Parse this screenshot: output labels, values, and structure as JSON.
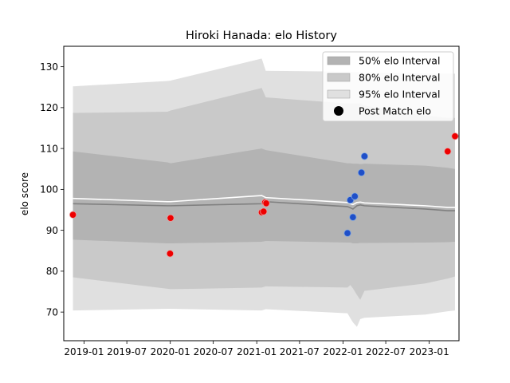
{
  "chart_data": {
    "type": "line",
    "title": "Hiroki Hanada: elo History",
    "xlabel": "",
    "ylabel": "elo score",
    "xlim": [
      "2018-10-07",
      "2023-05-07"
    ],
    "ylim": [
      63.0,
      135.0
    ],
    "yticks": [
      70,
      80,
      90,
      100,
      110,
      120,
      130
    ],
    "xticks": [
      "2019-01-01",
      "2019-07-01",
      "2020-01-01",
      "2020-07-01",
      "2021-01-01",
      "2021-07-01",
      "2022-01-01",
      "2022-07-01",
      "2023-01-01"
    ],
    "xtick_labels": [
      "2019-01",
      "2019-07",
      "2020-01",
      "2020-07",
      "2021-01",
      "2021-07",
      "2022-01",
      "2022-07",
      "2023-01"
    ],
    "grid": false,
    "legend_placement": "upper right",
    "legend": [
      {
        "label": "50% elo Interval",
        "kind": "patch",
        "color": "#b3b3b3"
      },
      {
        "label": "80% elo Interval",
        "kind": "patch",
        "color": "#c9c9c9"
      },
      {
        "label": "95% elo Interval",
        "kind": "patch",
        "color": "#e0e0e0"
      },
      {
        "label": "Post Match elo",
        "kind": "marker",
        "color": "#000000"
      }
    ],
    "x": [
      "2018-11-15",
      "2019-12-20",
      "2020-01-02",
      "2021-01-22",
      "2021-02-08",
      "2022-01-20",
      "2022-02-01",
      "2022-02-12",
      "2022-03-01",
      "2022-03-15",
      "2022-04-02",
      "2022-12-15",
      "2023-03-20",
      "2023-04-20"
    ],
    "series": [
      {
        "name": "mean",
        "color": "#808080",
        "values": [
          96.5,
          96.0,
          96.0,
          96.5,
          97.0,
          95.8,
          95.5,
          95.2,
          96.0,
          96.2,
          96.0,
          95.2,
          94.8,
          94.8
        ]
      },
      {
        "name": "upper",
        "color": "#ffffff",
        "values": [
          97.8,
          97.0,
          97.0,
          98.5,
          98.0,
          96.8,
          96.5,
          96.3,
          96.8,
          96.9,
          96.7,
          96.0,
          95.6,
          95.6
        ]
      },
      {
        "name": "50% elo Interval",
        "color": "#b3b3b3",
        "lower": [
          87.7,
          86.8,
          86.8,
          87.2,
          87.4,
          87.0,
          87.0,
          86.8,
          86.8,
          86.9,
          86.9,
          87.0,
          87.1,
          87.2
        ],
        "upper": [
          109.3,
          106.6,
          106.4,
          110.0,
          109.6,
          106.4,
          106.4,
          106.3,
          106.3,
          106.2,
          106.3,
          105.8,
          105.3,
          105.0
        ]
      },
      {
        "name": "80% elo Interval",
        "color": "#c9c9c9",
        "lower": [
          78.5,
          75.7,
          75.6,
          76.0,
          76.3,
          76.0,
          76.6,
          75.8,
          74.2,
          73.0,
          75.2,
          77.0,
          78.2,
          78.7
        ],
        "upper": [
          118.7,
          119.0,
          119.3,
          124.8,
          122.5,
          121.0,
          121.0,
          121.0,
          121.0,
          121.0,
          120.5,
          118.0,
          117.5,
          117.5
        ]
      },
      {
        "name": "95% elo Interval",
        "color": "#e0e0e0",
        "lower": [
          70.4,
          70.8,
          70.8,
          70.4,
          70.7,
          69.7,
          68.5,
          67.5,
          66.4,
          68.3,
          68.6,
          69.4,
          70.2,
          70.4
        ],
        "upper": [
          125.2,
          126.5,
          126.6,
          132.0,
          129.0,
          128.8,
          128.8,
          128.7,
          128.7,
          128.7,
          128.6,
          128.4,
          128.3,
          128.3
        ]
      }
    ],
    "points": [
      {
        "x": "2018-11-15",
        "y": 93.8,
        "color": "#ee0000"
      },
      {
        "x": "2020-01-02",
        "y": 93.0,
        "color": "#ee0000"
      },
      {
        "x": "2019-12-31",
        "y": 84.3,
        "color": "#ee0000"
      },
      {
        "x": "2021-01-22",
        "y": 94.4,
        "color": "#ee0000"
      },
      {
        "x": "2021-01-30",
        "y": 94.6,
        "color": "#ee0000"
      },
      {
        "x": "2021-02-05",
        "y": 96.8,
        "color": "#ee0000"
      },
      {
        "x": "2021-02-10",
        "y": 96.6,
        "color": "#ee0000"
      },
      {
        "x": "2022-01-20",
        "y": 89.3,
        "color": "#1f4fc8"
      },
      {
        "x": "2022-02-01",
        "y": 97.4,
        "color": "#1f4fc8"
      },
      {
        "x": "2022-02-12",
        "y": 93.2,
        "color": "#1f4fc8"
      },
      {
        "x": "2022-02-20",
        "y": 98.3,
        "color": "#1f4fc8"
      },
      {
        "x": "2022-03-20",
        "y": 104.1,
        "color": "#1f4fc8"
      },
      {
        "x": "2022-04-02",
        "y": 108.1,
        "color": "#1f4fc8"
      },
      {
        "x": "2023-03-20",
        "y": 109.3,
        "color": "#ee0000"
      },
      {
        "x": "2023-04-20",
        "y": 113.0,
        "color": "#ee0000"
      }
    ]
  }
}
